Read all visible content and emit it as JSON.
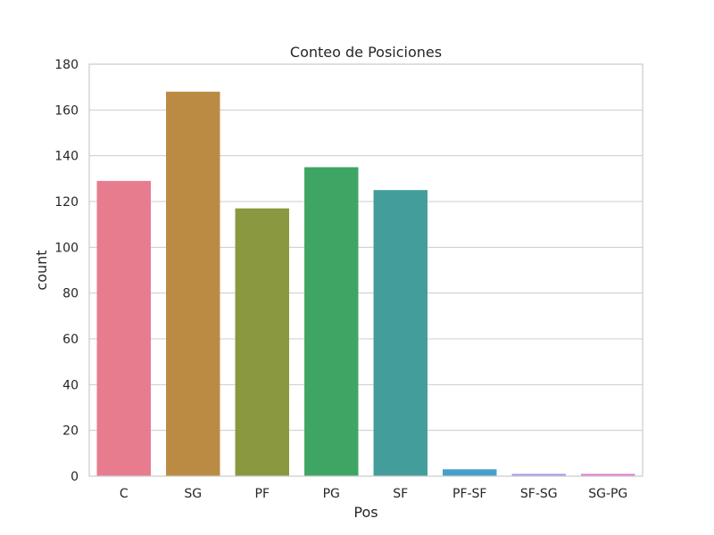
{
  "chart_data": {
    "type": "bar",
    "title": "Conteo de Posiciones",
    "xlabel": "Pos",
    "ylabel": "count",
    "categories": [
      "C",
      "SG",
      "PF",
      "PG",
      "SF",
      "PF-SF",
      "SF-SG",
      "SG-PG"
    ],
    "values": [
      129,
      168,
      117,
      135,
      125,
      3,
      1,
      1
    ],
    "colors": [
      "#e77c8e",
      "#bb8b43",
      "#8a983f",
      "#3fa565",
      "#439e9b",
      "#47a0c9",
      "#a99ae6",
      "#e37ccd"
    ],
    "yticks": [
      0,
      20,
      40,
      60,
      80,
      100,
      120,
      140,
      160,
      180
    ],
    "ylim": [
      0,
      180
    ],
    "grid": "y"
  }
}
